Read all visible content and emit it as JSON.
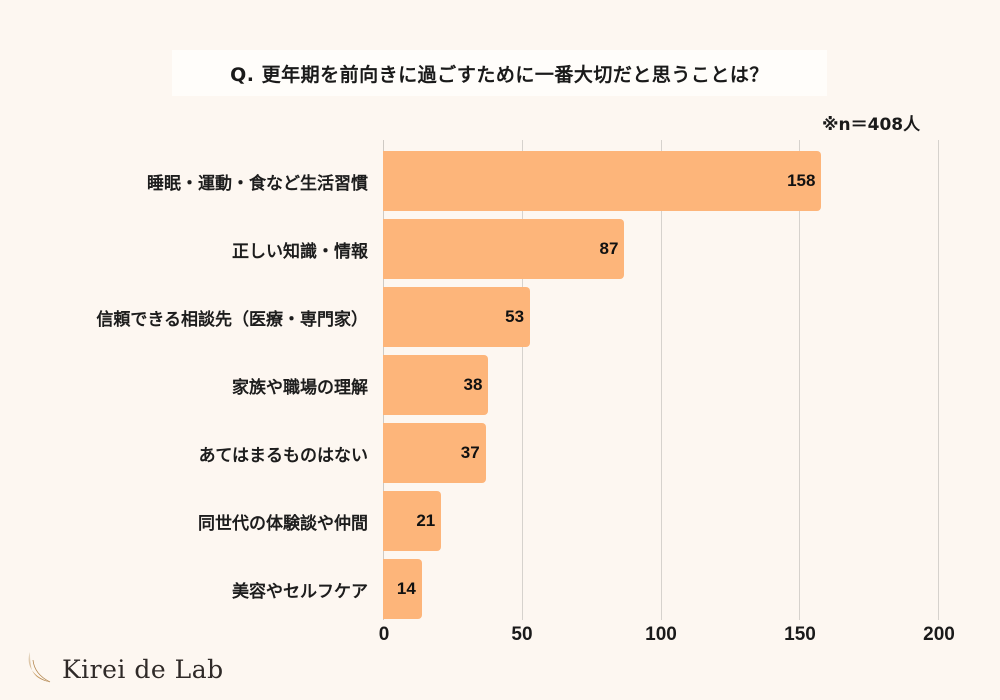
{
  "title": "Q. 更年期を前向きに過ごすために一番大切だと思うことは？",
  "sample_note": "※n＝408人",
  "colors": {
    "background": "#fdf7f1",
    "bar": "#fdb57a",
    "title_box": "#fffdfa",
    "gridline": "#d6d2cd"
  },
  "axis": {
    "ticks": [
      "0",
      "50",
      "100",
      "150",
      "200"
    ]
  },
  "bars": [
    {
      "label": "睡眠・運動・食など生活習慣",
      "value": "158"
    },
    {
      "label": "正しい知識・情報",
      "value": "87"
    },
    {
      "label": "信頼できる相談先（医療・専門家）",
      "value": "53"
    },
    {
      "label": "家族や職場の理解",
      "value": "38"
    },
    {
      "label": "あてはまるものはない",
      "value": "37"
    },
    {
      "label": "同世代の体験談や仲間",
      "value": "21"
    },
    {
      "label": "美容やセルフケア",
      "value": "14"
    }
  ],
  "logo": {
    "text": "Kirei de Lab",
    "icon": "feather-icon"
  },
  "chart_data": {
    "type": "bar",
    "orientation": "horizontal",
    "title": "Q. 更年期を前向きに過ごすために一番大切だと思うことは？",
    "annotation": "※n＝408人",
    "categories": [
      "睡眠・運動・食など生活習慣",
      "正しい知識・情報",
      "信頼できる相談先（医療・専門家）",
      "家族や職場の理解",
      "あてはまるものはない",
      "同世代の体験談や仲間",
      "美容やセルフケア"
    ],
    "values": [
      158,
      87,
      53,
      38,
      37,
      21,
      14
    ],
    "xlabel": "",
    "ylabel": "",
    "xlim": [
      0,
      200
    ],
    "xticks": [
      0,
      50,
      100,
      150,
      200
    ],
    "grid": "vertical",
    "legend": "none",
    "data_labels": "inside-end"
  }
}
